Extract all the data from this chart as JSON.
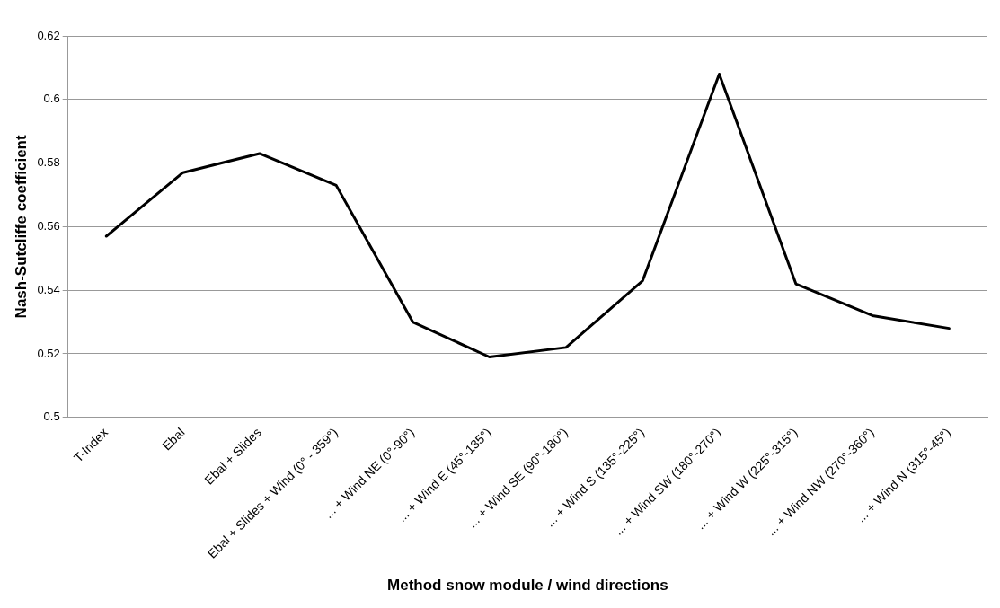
{
  "chart_data": {
    "type": "line",
    "xlabel": "Method snow module / wind directions",
    "ylabel": "Nash-Sutcliffe coefficient",
    "categories": [
      "T-Index",
      "Ebal",
      "Ebal + Slides",
      "Ebal + Slides + Wind (0° - 359°)",
      "... + Wind NE (0°-90°)",
      "... + Wind E (45°-135°)",
      "... + Wind SE (90°-180°)",
      "... + Wind S (135°-225°)",
      "... + Wind SW (180°-270°)",
      "... + Wind W (225°-315°)",
      "... + Wind NW (270°-360°)",
      "... + Wind N (315°-45°)"
    ],
    "series": [
      {
        "color": "#000000",
        "values": [
          0.557,
          0.577,
          0.583,
          0.573,
          0.53,
          0.519,
          0.522,
          0.543,
          0.608,
          0.542,
          0.532,
          0.528
        ]
      }
    ],
    "ylim": [
      0.5,
      0.62
    ],
    "yticks": [
      0.5,
      0.52,
      0.54,
      0.56,
      0.58,
      0.6,
      0.62
    ],
    "grid": "y",
    "legend": false,
    "marker": "none",
    "line_style": "solid"
  }
}
